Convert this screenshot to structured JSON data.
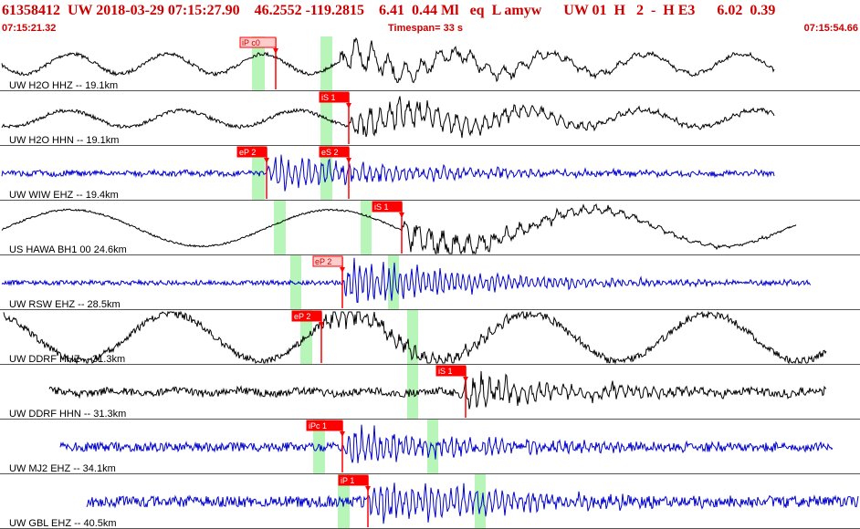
{
  "header": {
    "event_id": "61358412",
    "network": "UW",
    "datetime": "2018-03-29 07:15:27.90",
    "lat": "46.2552",
    "lon": "-119.2815",
    "depth": "6.41",
    "magnitude": "0.44 Ml",
    "event_type": "eq",
    "status": "L",
    "author": "amyw",
    "channel_info": "UW 01  H   2  -  H E3",
    "value1": "6.02",
    "value2": "0.39",
    "start_time": "07:15:21.32",
    "timespan": "Timespan=  33 s",
    "end_time": "07:15:54.66"
  },
  "colors": {
    "header_text": "#cc0000",
    "trace_black": "#000000",
    "trace_blue": "#0000cc",
    "pick": "#ff0000",
    "pick_light": "#ffcccc",
    "window": "#b8f5b8"
  },
  "traces": [
    {
      "label": "UW H2O HHZ -- 19.1km",
      "color": "black",
      "picks": [
        {
          "label": "iP c0",
          "style": "light"
        }
      ]
    },
    {
      "label": "UW H2O HHN -- 19.1km",
      "color": "black",
      "picks": [
        {
          "label": "iS 1",
          "style": "solid"
        }
      ]
    },
    {
      "label": "UW WIW EHZ -- 19.4km",
      "color": "blue",
      "picks": [
        {
          "label": "eP 2",
          "style": "solid"
        },
        {
          "label": "eS 2",
          "style": "solid"
        }
      ]
    },
    {
      "label": "US HAWA BH1 00 24.6km",
      "color": "black",
      "picks": [
        {
          "label": "iS 1",
          "style": "solid"
        }
      ]
    },
    {
      "label": "UW RSW EHZ -- 28.5km",
      "color": "blue",
      "picks": [
        {
          "label": "eP 2",
          "style": "light"
        }
      ]
    },
    {
      "label": "UW DDRF HHZ -- 31.3km",
      "color": "black",
      "picks": [
        {
          "label": "eP 2",
          "style": "solid"
        }
      ]
    },
    {
      "label": "UW DDRF HHN -- 31.3km",
      "color": "black",
      "picks": [
        {
          "label": "iS 1",
          "style": "solid"
        }
      ]
    },
    {
      "label": "UW MJ2 EHZ -- 34.1km",
      "color": "blue",
      "picks": [
        {
          "label": "iPc 1",
          "style": "solid"
        }
      ]
    },
    {
      "label": "UW GBL EHZ -- 40.5km",
      "color": "blue",
      "picks": [
        {
          "label": "iP 1",
          "style": "solid"
        }
      ]
    }
  ]
}
